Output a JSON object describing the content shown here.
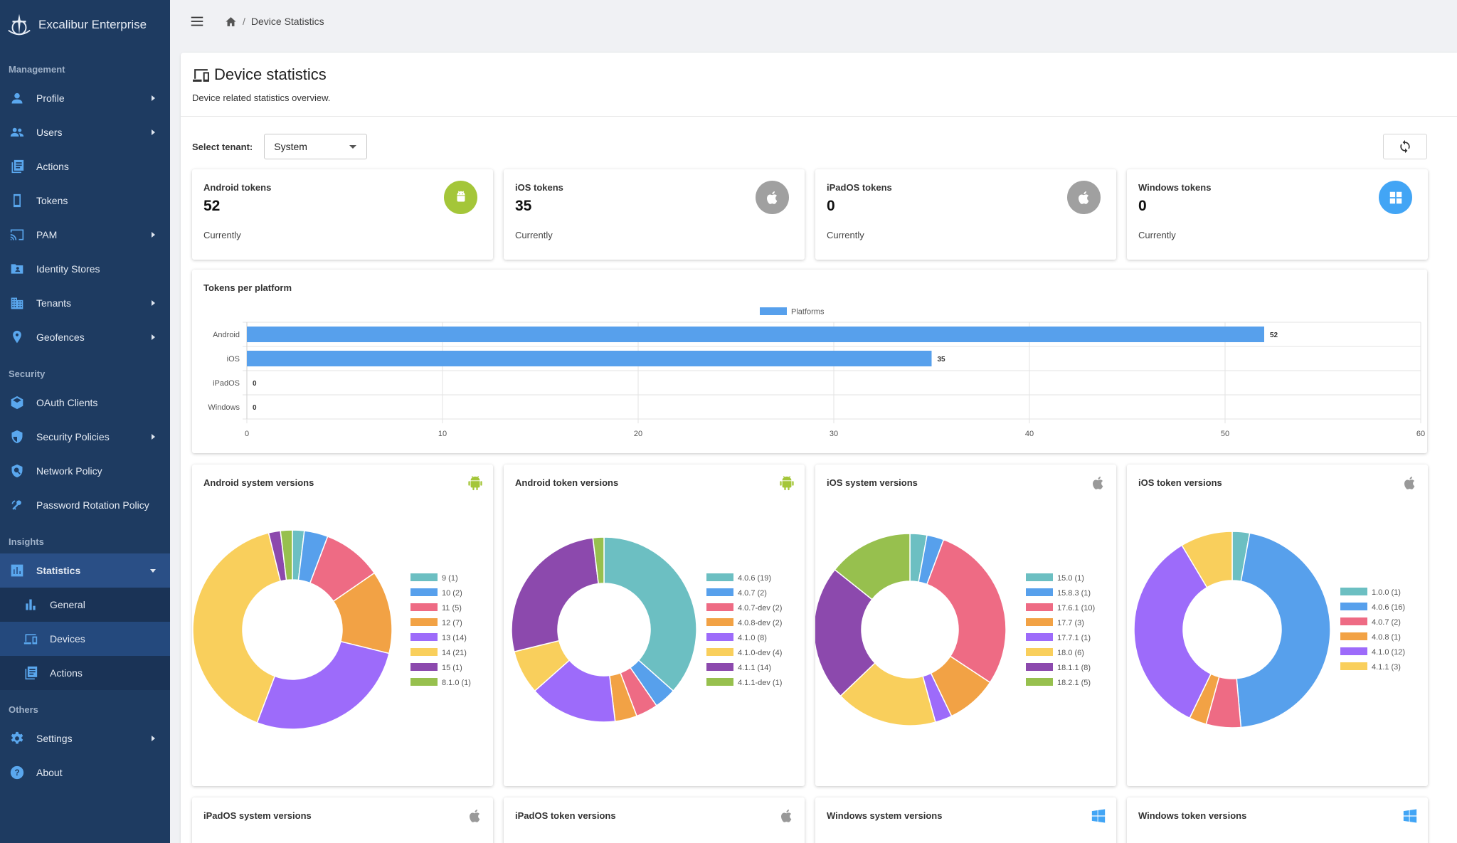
{
  "app": {
    "name": "Excalibur Enterprise"
  },
  "sidebar": {
    "sections": {
      "management": "Management",
      "security": "Security",
      "insights": "Insights",
      "others": "Others"
    },
    "items": {
      "profile": "Profile",
      "users": "Users",
      "actions": "Actions",
      "tokens": "Tokens",
      "pam": "PAM",
      "identity_stores": "Identity Stores",
      "tenants": "Tenants",
      "geofences": "Geofences",
      "oauth_clients": "OAuth Clients",
      "security_policies": "Security Policies",
      "network_policy": "Network Policy",
      "password_rotation": "Password Rotation Policy",
      "statistics": "Statistics",
      "general": "General",
      "devices": "Devices",
      "insights_actions": "Actions",
      "settings": "Settings",
      "about": "About"
    }
  },
  "breadcrumb": {
    "separator": "/",
    "current": "Device Statistics"
  },
  "page": {
    "title": "Device statistics",
    "subtitle": "Device related statistics overview."
  },
  "tenant": {
    "label": "Select tenant:",
    "value": "System"
  },
  "stats": [
    {
      "label": "Android tokens",
      "value": "52",
      "foot": "Currently",
      "color": "#a4c639",
      "icon": "android-icon"
    },
    {
      "label": "iOS tokens",
      "value": "35",
      "foot": "Currently",
      "color": "#a0a0a0",
      "icon": "apple-icon"
    },
    {
      "label": "iPadOS tokens",
      "value": "0",
      "foot": "Currently",
      "color": "#a0a0a0",
      "icon": "apple-icon"
    },
    {
      "label": "Windows tokens",
      "value": "0",
      "foot": "Currently",
      "color": "#42a5f5",
      "icon": "windows-icon"
    }
  ],
  "chart_data": [
    {
      "type": "bar",
      "orientation": "horizontal",
      "title": "Tokens per platform",
      "categories": [
        "Android",
        "iOS",
        "iPadOS",
        "Windows"
      ],
      "series": [
        {
          "name": "Platforms",
          "values": [
            52,
            35,
            0,
            0
          ],
          "color": "#57a0ec"
        }
      ],
      "xlim": [
        0,
        60
      ],
      "xticks": [
        0,
        10,
        20,
        30,
        40,
        50,
        60
      ],
      "legend": "top-center",
      "grid": true
    },
    {
      "type": "pie",
      "title": "Android system versions",
      "icon": "android-icon",
      "labels": [
        "9 (1)",
        "10 (2)",
        "11 (5)",
        "12 (7)",
        "13 (14)",
        "14 (21)",
        "15 (1)",
        "8.1.0 (1)"
      ],
      "values": [
        1,
        2,
        5,
        7,
        14,
        21,
        1,
        1
      ]
    },
    {
      "type": "pie",
      "title": "Android token versions",
      "icon": "android-icon",
      "labels": [
        "4.0.6 (19)",
        "4.0.7 (2)",
        "4.0.7-dev (2)",
        "4.0.8-dev (2)",
        "4.1.0 (8)",
        "4.1.0-dev (4)",
        "4.1.1 (14)",
        "4.1.1-dev (1)"
      ],
      "values": [
        19,
        2,
        2,
        2,
        8,
        4,
        14,
        1
      ]
    },
    {
      "type": "pie",
      "title": "iOS system versions",
      "icon": "apple-icon",
      "labels": [
        "15.0 (1)",
        "15.8.3 (1)",
        "17.6.1 (10)",
        "17.7 (3)",
        "17.7.1 (1)",
        "18.0 (6)",
        "18.1.1 (8)",
        "18.2.1 (5)"
      ],
      "values": [
        1,
        1,
        10,
        3,
        1,
        6,
        8,
        5
      ]
    },
    {
      "type": "pie",
      "title": "iOS token versions",
      "icon": "apple-icon",
      "labels": [
        "1.0.0 (1)",
        "4.0.6 (16)",
        "4.0.7 (2)",
        "4.0.8 (1)",
        "4.1.0 (12)",
        "4.1.1 (3)"
      ],
      "values": [
        1,
        16,
        2,
        1,
        12,
        3
      ]
    }
  ],
  "palette": [
    "#6cbfc2",
    "#57a0ec",
    "#ee6b84",
    "#f2a245",
    "#9d6bfa",
    "#f9cf5c",
    "#8c49ad",
    "#97c04e"
  ],
  "lower_cards": [
    {
      "title": "iPadOS system versions",
      "icon": "apple-icon"
    },
    {
      "title": "iPadOS token versions",
      "icon": "apple-icon"
    },
    {
      "title": "Windows system versions",
      "icon": "windows-icon"
    },
    {
      "title": "Windows token versions",
      "icon": "windows-icon"
    }
  ]
}
